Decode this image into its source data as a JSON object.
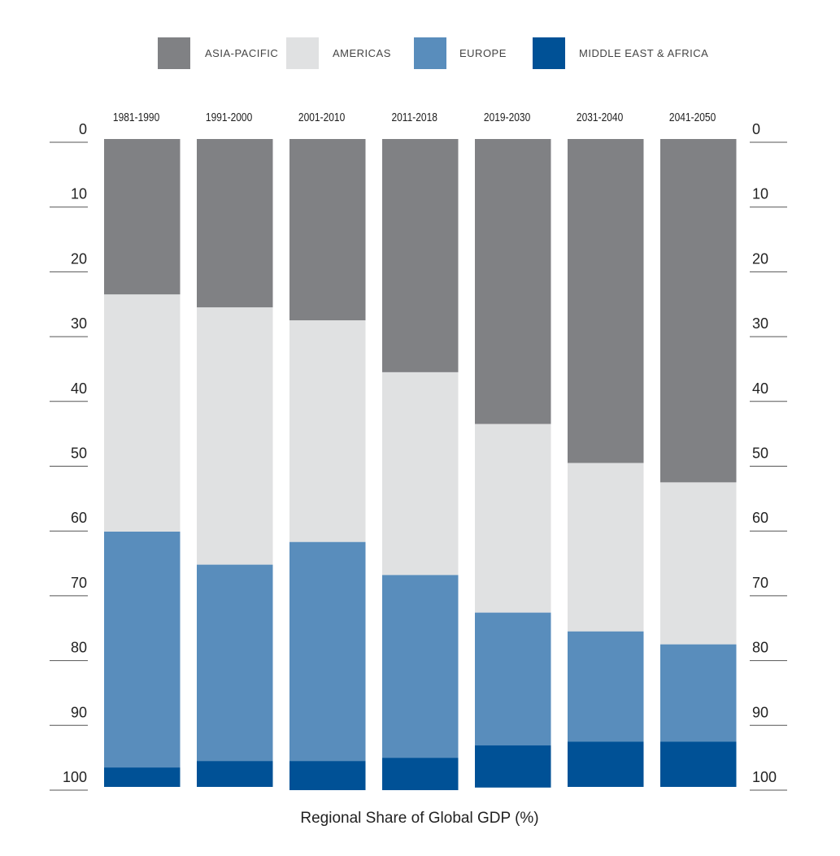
{
  "chart_data": {
    "type": "bar",
    "stacked": true,
    "orientation": "vertical",
    "title": "Regional Share of Global GDP (%)",
    "categories": [
      "1981-1990",
      "1991-2000",
      "2001-2010",
      "2011-2018",
      "2019-2030",
      "2031-2040",
      "2041-2050"
    ],
    "series": [
      {
        "name": "ASIA-PACIFIC",
        "color": "#808184",
        "values": [
          24,
          26,
          28,
          36,
          44,
          50,
          53
        ]
      },
      {
        "name": "AMERICAS",
        "color": "#e0e1e2",
        "values": [
          36.6,
          39.7,
          34.2,
          31.3,
          29.1,
          26,
          25
        ]
      },
      {
        "name": "EUROPE",
        "color": "#598dbc",
        "values": [
          36.4,
          30.3,
          33.8,
          28.2,
          20.5,
          17,
          15
        ]
      },
      {
        "name": "MIDDLE EAST & AFRICA",
        "color": "#005196",
        "values": [
          3,
          4,
          4.5,
          5,
          6.5,
          7,
          7
        ]
      }
    ],
    "yaxis": {
      "range": [
        0,
        100
      ],
      "inverted": true,
      "ticks": [
        "0",
        "10",
        "20",
        "30",
        "40",
        "50",
        "60",
        "70",
        "80",
        "90",
        "100"
      ],
      "labels_on_both_sides": true
    },
    "legend_position": "top-center",
    "grid": false
  }
}
